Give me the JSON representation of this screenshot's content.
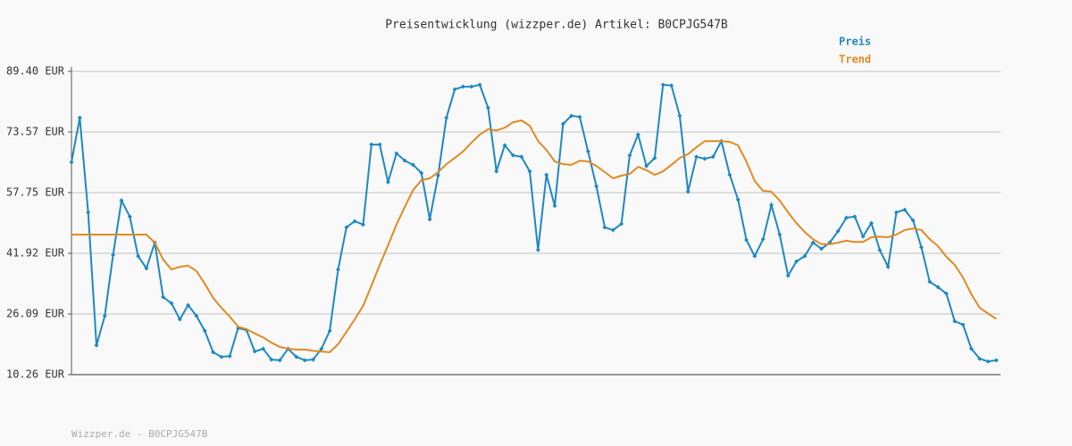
{
  "chart_data": {
    "type": "line",
    "title": "Preisentwicklung (wizzper.de) Artikel: B0CPJG547B",
    "footer": "Wizzper.de - B0CPJG547B",
    "ylim": [
      10.26,
      89.4
    ],
    "yticks": [
      {
        "value": 10.26,
        "label": "10.26 EUR"
      },
      {
        "value": 26.09,
        "label": "26.09 EUR"
      },
      {
        "value": 41.92,
        "label": "41.92 EUR"
      },
      {
        "value": 57.75,
        "label": "57.75 EUR"
      },
      {
        "value": 73.57,
        "label": "73.57 EUR"
      },
      {
        "value": 89.4,
        "label": "89.40 EUR"
      }
    ],
    "grid": true,
    "legend": "top-right",
    "series": [
      {
        "name": "Preis",
        "color": "#1f88c2",
        "markers": true,
        "values": [
          65.7,
          77.3,
          52.6,
          17.9,
          25.6,
          41.5,
          55.7,
          51.5,
          41.2,
          38.0,
          44.7,
          30.5,
          28.9,
          24.7,
          28.4,
          25.6,
          21.7,
          16.1,
          14.9,
          15.1,
          22.4,
          21.9,
          16.3,
          17.0,
          14.2,
          14.0,
          17.0,
          14.9,
          14.0,
          14.2,
          17.0,
          21.7,
          37.7,
          48.7,
          50.3,
          49.4,
          70.3,
          70.3,
          60.5,
          68.0,
          66.1,
          65.0,
          62.9,
          50.8,
          62.2,
          77.3,
          84.7,
          85.4,
          85.4,
          85.9,
          79.9,
          63.3,
          70.1,
          67.5,
          67.1,
          63.3,
          42.8,
          62.4,
          54.3,
          75.7,
          77.8,
          77.5,
          68.5,
          59.4,
          48.7,
          48.0,
          49.6,
          67.5,
          72.9,
          64.7,
          66.8,
          85.9,
          85.7,
          77.8,
          58.0,
          67.1,
          66.6,
          67.1,
          71.2,
          62.4,
          55.9,
          45.4,
          41.2,
          45.6,
          54.5,
          46.8,
          36.1,
          39.8,
          41.2,
          44.7,
          43.1,
          44.7,
          47.7,
          51.2,
          51.5,
          46.3,
          49.8,
          42.8,
          38.4,
          52.6,
          53.3,
          50.5,
          43.5,
          34.5,
          33.1,
          31.4,
          24.2,
          23.3,
          17.0,
          14.4,
          13.7,
          14.0
        ]
      },
      {
        "name": "Trend",
        "color": "#e08a22",
        "markers": false,
        "values": [
          46.8,
          46.8,
          46.8,
          46.8,
          46.8,
          46.8,
          46.8,
          46.8,
          46.8,
          46.8,
          44.7,
          40.3,
          37.7,
          38.4,
          38.7,
          37.3,
          34.0,
          30.3,
          27.7,
          25.4,
          22.8,
          22.1,
          21.0,
          20.0,
          18.6,
          17.5,
          17.0,
          16.8,
          16.8,
          16.5,
          16.3,
          16.1,
          18.2,
          21.4,
          24.7,
          28.2,
          33.5,
          38.9,
          44.0,
          49.4,
          54.0,
          58.4,
          61.0,
          61.5,
          63.1,
          65.2,
          66.8,
          68.5,
          70.8,
          72.9,
          74.3,
          74.0,
          74.7,
          76.1,
          76.6,
          75.2,
          71.2,
          68.9,
          65.9,
          65.2,
          65.0,
          66.1,
          65.9,
          64.7,
          63.1,
          61.5,
          62.2,
          62.6,
          64.5,
          63.6,
          62.4,
          63.3,
          65.0,
          66.8,
          67.8,
          69.6,
          71.2,
          71.2,
          71.2,
          71.0,
          70.1,
          65.9,
          60.8,
          58.2,
          58.0,
          55.7,
          52.6,
          49.8,
          47.5,
          45.6,
          44.3,
          44.3,
          44.7,
          45.2,
          44.9,
          44.9,
          46.1,
          46.3,
          46.1,
          46.8,
          48.0,
          48.4,
          48.0,
          45.6,
          43.8,
          41.0,
          38.9,
          35.6,
          31.2,
          27.7,
          26.2,
          24.8
        ]
      }
    ]
  }
}
